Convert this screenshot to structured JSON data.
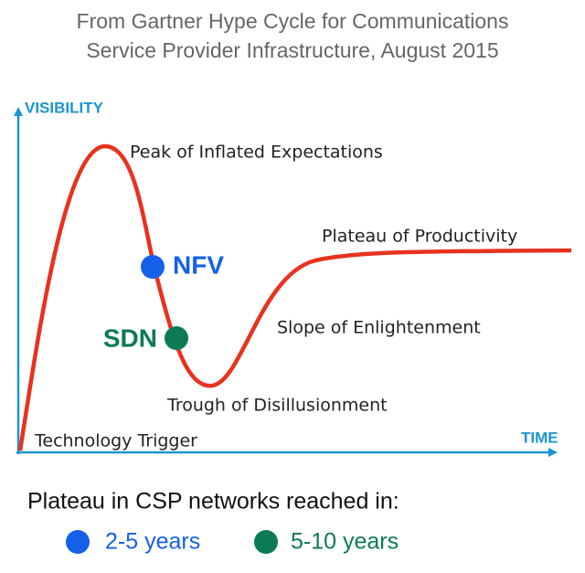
{
  "header": {
    "title_lines": [
      "From Gartner Hype Cycle for Communications",
      "Service Provider Infrastructure, August 2015"
    ]
  },
  "axes": {
    "y_label": "VISIBILITY",
    "x_label": "TIME"
  },
  "phases": [
    "Technology Trigger",
    "Peak of Inflated Expectations",
    "Trough of Disillusionment",
    "Slope of Enlightenment",
    "Plateau of Productivity"
  ],
  "markers": [
    {
      "label": "NFV"
    },
    {
      "label": "SDN"
    }
  ],
  "legend": {
    "title": "Plateau in CSP networks reached in:",
    "items": [
      "2-5 years",
      "5-10 years"
    ]
  }
}
